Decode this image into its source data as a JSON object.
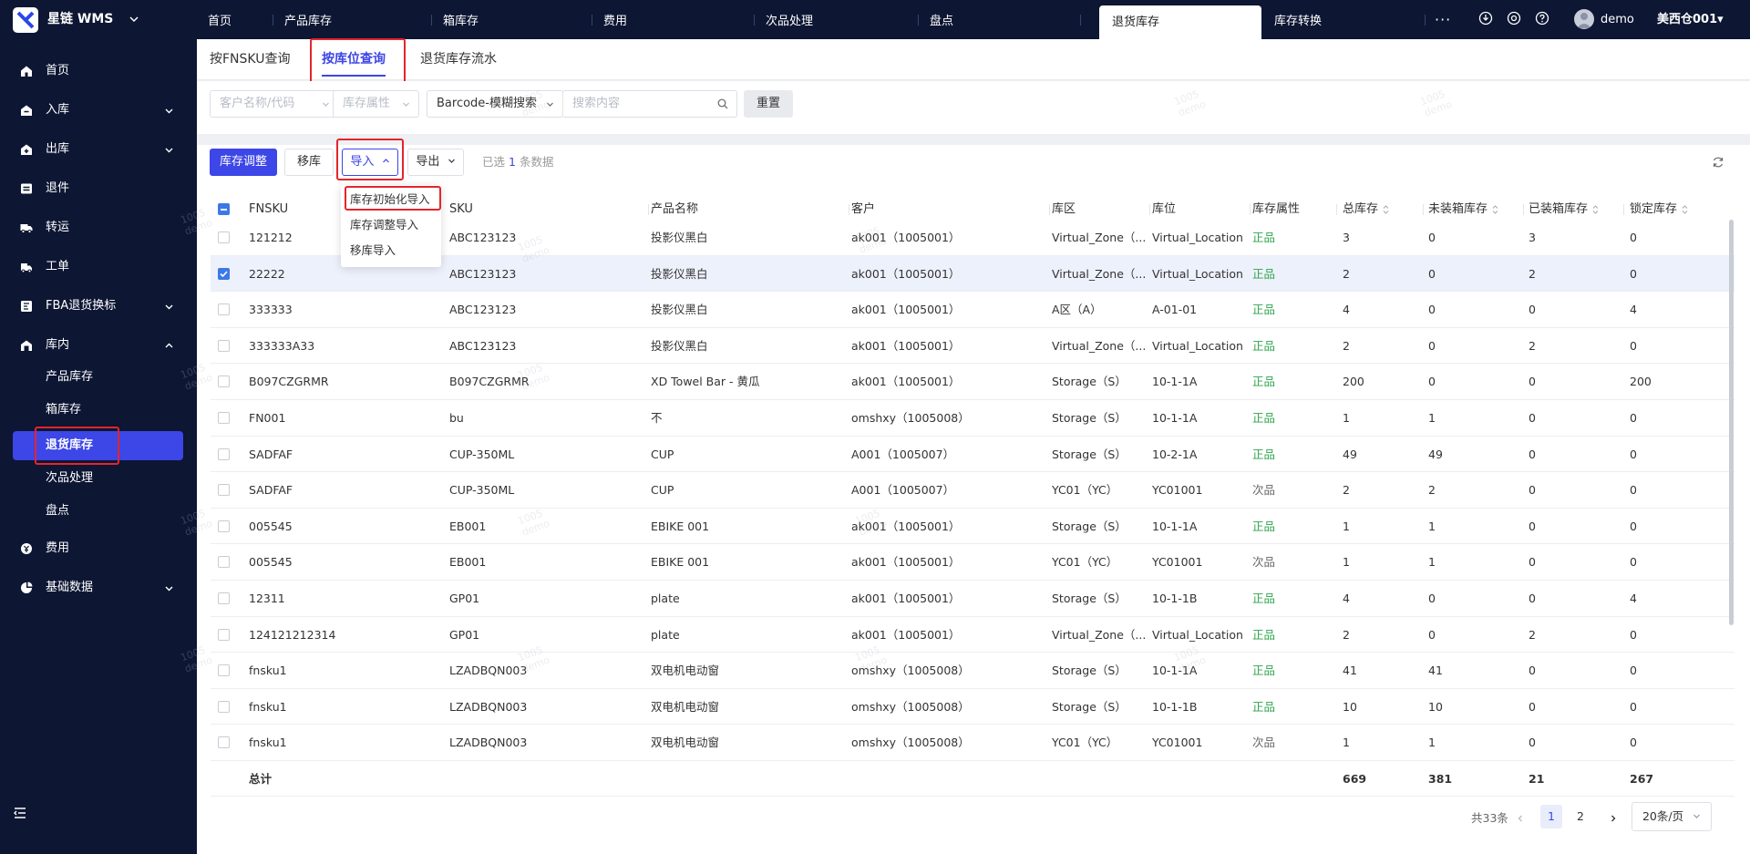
{
  "app": {
    "brand": "星链 WMS",
    "user": "demo",
    "warehouse": "美西仓001▾"
  },
  "nav": {
    "tabs": [
      "首页",
      "产品库存",
      "箱库存",
      "费用",
      "次品处理",
      "盘点",
      "退货库存",
      "库存转换"
    ],
    "active": "退货库存",
    "more": "···"
  },
  "sidebar": {
    "items": [
      {
        "label": "首页",
        "icon": "home-icon"
      },
      {
        "label": "入库",
        "icon": "inbound-icon"
      },
      {
        "label": "出库",
        "icon": "outbound-icon"
      },
      {
        "label": "退件",
        "icon": "return-icon"
      },
      {
        "label": "转运",
        "icon": "truck-icon"
      },
      {
        "label": "工单",
        "icon": "workorder-icon"
      },
      {
        "label": "FBA退货换标",
        "icon": "fba-icon"
      },
      {
        "label": "库内",
        "icon": "warehouse-icon"
      }
    ],
    "subitems": [
      "产品库存",
      "箱库存",
      "退货库存",
      "次品处理",
      "盘点"
    ],
    "bottom": [
      {
        "label": "费用",
        "icon": "fee-icon"
      },
      {
        "label": "基础数据",
        "icon": "data-icon"
      }
    ]
  },
  "subtabs": [
    "按FNSKU查询",
    "按库位查询",
    "退货库存流水"
  ],
  "filters": {
    "customer": "客户名称/代码",
    "attribute": "库存属性",
    "search_type": "Barcode-模糊搜索",
    "search_placeholder": "搜索内容",
    "reset": "重置"
  },
  "toolbar": {
    "adjust": "库存调整",
    "move": "移库",
    "import": "导入",
    "export": "导出",
    "selected_prefix": "已选",
    "selected_count": "1",
    "selected_suffix": "条数据"
  },
  "import_menu": [
    "库存初始化导入",
    "库存调整导入",
    "移库导入"
  ],
  "table": {
    "columns": [
      "FNSKU",
      "SKU",
      "产品名称",
      "客户",
      "库区",
      "库位",
      "库存属性",
      "总库存",
      "未装箱库存",
      "已装箱库存",
      "锁定库存"
    ],
    "rows": [
      [
        "121212",
        "ABC123123",
        "投影仪黑白",
        "ak001（1005001）",
        "Virtual_Zone（...",
        "Virtual_Location",
        "正品",
        "3",
        "0",
        "3",
        "0"
      ],
      [
        "22222",
        "ABC123123",
        "投影仪黑白",
        "ak001（1005001）",
        "Virtual_Zone（...",
        "Virtual_Location",
        "正品",
        "2",
        "0",
        "2",
        "0"
      ],
      [
        "333333",
        "ABC123123",
        "投影仪黑白",
        "ak001（1005001）",
        "A区（A）",
        "A-01-01",
        "正品",
        "4",
        "0",
        "0",
        "4"
      ],
      [
        "333333A33",
        "ABC123123",
        "投影仪黑白",
        "ak001（1005001）",
        "Virtual_Zone（...",
        "Virtual_Location",
        "正品",
        "2",
        "0",
        "2",
        "0"
      ],
      [
        "B097CZGRMR",
        "B097CZGRMR",
        "XD Towel Bar - 黄瓜",
        "ak001（1005001）",
        "Storage（S）",
        "10-1-1A",
        "正品",
        "200",
        "0",
        "0",
        "200"
      ],
      [
        "FN001",
        "bu",
        "不",
        "omshxy（1005008）",
        "Storage（S）",
        "10-1-1A",
        "正品",
        "1",
        "1",
        "0",
        "0"
      ],
      [
        "SADFAF",
        "CUP-350ML",
        "CUP",
        "A001（1005007）",
        "Storage（S）",
        "10-2-1A",
        "正品",
        "49",
        "49",
        "0",
        "0"
      ],
      [
        "SADFAF",
        "CUP-350ML",
        "CUP",
        "A001（1005007）",
        "YC01（YC）",
        "YC01001",
        "次品",
        "2",
        "2",
        "0",
        "0"
      ],
      [
        "005545",
        "EB001",
        "EBIKE 001",
        "ak001（1005001）",
        "Storage（S）",
        "10-1-1A",
        "正品",
        "1",
        "1",
        "0",
        "0"
      ],
      [
        "005545",
        "EB001",
        "EBIKE 001",
        "ak001（1005001）",
        "YC01（YC）",
        "YC01001",
        "次品",
        "1",
        "1",
        "0",
        "0"
      ],
      [
        "12311",
        "GP01",
        "plate",
        "ak001（1005001）",
        "Storage（S）",
        "10-1-1B",
        "正品",
        "4",
        "0",
        "0",
        "4"
      ],
      [
        "124121212314",
        "GP01",
        "plate",
        "ak001（1005001）",
        "Virtual_Zone（...",
        "Virtual_Location",
        "正品",
        "2",
        "0",
        "2",
        "0"
      ],
      [
        "fnsku1",
        "LZADBQN003",
        "双电机电动窗",
        "omshxy（1005008）",
        "Storage（S）",
        "10-1-1A",
        "正品",
        "41",
        "41",
        "0",
        "0"
      ],
      [
        "fnsku1",
        "LZADBQN003",
        "双电机电动窗",
        "omshxy（1005008）",
        "Storage（S）",
        "10-1-1B",
        "正品",
        "10",
        "10",
        "0",
        "0"
      ],
      [
        "fnsku1",
        "LZADBQN003",
        "双电机电动窗",
        "omshxy（1005008）",
        "YC01（YC）",
        "YC01001",
        "次品",
        "1",
        "1",
        "0",
        "0"
      ]
    ],
    "selected_row": 1,
    "summary": {
      "label": "总计",
      "total": "669",
      "unboxed": "381",
      "boxed": "21",
      "locked": "267"
    }
  },
  "pager": {
    "total": "共33条",
    "pages": [
      "1",
      "2"
    ],
    "current": "1",
    "page_size": "20条/页"
  },
  "watermark": {
    "line1": "1005",
    "line2": "demo"
  },
  "colors": {
    "accent": "#3d46e6",
    "sidebar": "#0d1633",
    "good": "#2fa34b",
    "highlight": "#e5242b"
  }
}
